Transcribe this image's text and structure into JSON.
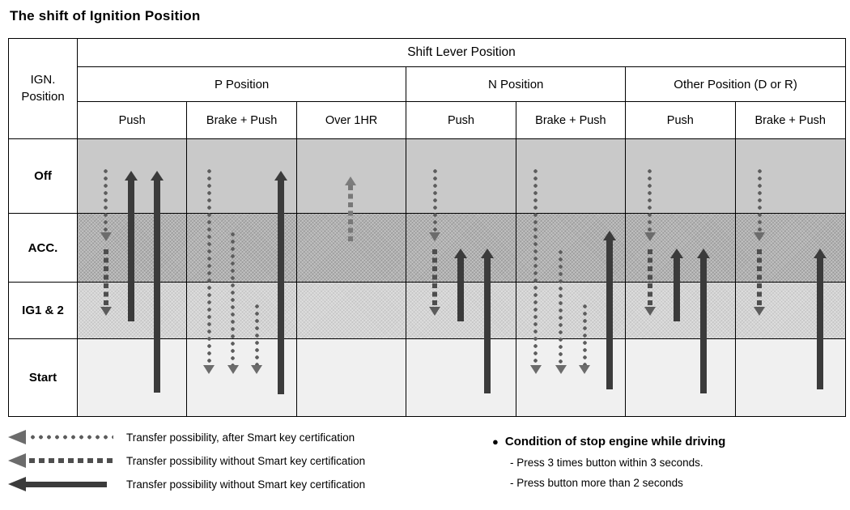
{
  "title": "The shift of Ignition Position",
  "table": {
    "corner_header": "IGN.\nPosition",
    "shift_lever_header": "Shift Lever Position",
    "group_headers": [
      "P Position",
      "N Position",
      "Other Position (D or R)"
    ],
    "column_headers": [
      "Push",
      "Brake + Push",
      "Over 1HR",
      "Push",
      "Brake + Push",
      "Push",
      "Brake + Push"
    ],
    "row_headers": [
      "Off",
      "ACC.",
      "IG1 & 2",
      "Start"
    ]
  },
  "arrows": [
    {
      "col": 0,
      "x": 26,
      "type": "dotted-down",
      "from": "Off",
      "to": "ACC.",
      "u1": 0.38,
      "u2": 1.4
    },
    {
      "col": 0,
      "x": 26,
      "type": "dashed-down",
      "from": "ACC.",
      "to": "IG1 & 2",
      "u1": 1.52,
      "u2": 2.58
    },
    {
      "col": 0,
      "x": 49,
      "type": "solid-up",
      "from": "IG1 & 2",
      "to": "Off",
      "u1": 0.42,
      "u2": 2.68
    },
    {
      "col": 0,
      "x": 73,
      "type": "solid-up",
      "from": "Start",
      "to": "Off",
      "u1": 0.42,
      "u2": 3.7
    },
    {
      "col": 1,
      "x": 20,
      "type": "dotted-down",
      "from": "Off",
      "to": "Start",
      "u1": 0.38,
      "u2": 3.45
    },
    {
      "col": 1,
      "x": 42,
      "type": "dotted-down",
      "from": "ACC.",
      "to": "Start",
      "u1": 1.25,
      "u2": 3.45
    },
    {
      "col": 1,
      "x": 64,
      "type": "dotted-down",
      "from": "IG1 & 2",
      "to": "Start",
      "u1": 2.35,
      "u2": 3.45
    },
    {
      "col": 1,
      "x": 86,
      "type": "solid-up",
      "from": "Start",
      "to": "Off",
      "u1": 0.42,
      "u2": 3.72
    },
    {
      "col": 2,
      "x": 49,
      "type": "dashed-up",
      "from": "ACC.",
      "to": "Off",
      "u1": 0.5,
      "u2": 1.45
    },
    {
      "col": 3,
      "x": 26,
      "type": "dotted-down",
      "from": "Off",
      "to": "ACC.",
      "u1": 0.38,
      "u2": 1.4
    },
    {
      "col": 3,
      "x": 26,
      "type": "dashed-down",
      "from": "ACC.",
      "to": "IG1 & 2",
      "u1": 1.52,
      "u2": 2.58
    },
    {
      "col": 3,
      "x": 50,
      "type": "solid-up",
      "from": "IG1 & 2",
      "to": "ACC.",
      "u1": 1.5,
      "u2": 2.68
    },
    {
      "col": 3,
      "x": 74,
      "type": "solid-up",
      "from": "Start",
      "to": "ACC.",
      "u1": 1.5,
      "u2": 3.7
    },
    {
      "col": 4,
      "x": 18,
      "type": "dotted-down",
      "from": "Off",
      "to": "Start",
      "u1": 0.38,
      "u2": 3.45
    },
    {
      "col": 4,
      "x": 41,
      "type": "dotted-down",
      "from": "ACC.",
      "to": "Start",
      "u1": 1.5,
      "u2": 3.45
    },
    {
      "col": 4,
      "x": 63,
      "type": "dotted-down",
      "from": "IG1 & 2",
      "to": "Start",
      "u1": 2.35,
      "u2": 3.45
    },
    {
      "col": 4,
      "x": 86,
      "type": "solid-up",
      "from": "Start",
      "to": "ACC.",
      "u1": 1.25,
      "u2": 3.65
    },
    {
      "col": 5,
      "x": 22,
      "type": "dotted-down",
      "from": "Off",
      "to": "ACC.",
      "u1": 0.38,
      "u2": 1.4
    },
    {
      "col": 5,
      "x": 22,
      "type": "dashed-down",
      "from": "ACC.",
      "to": "IG1 & 2",
      "u1": 1.52,
      "u2": 2.58
    },
    {
      "col": 5,
      "x": 47,
      "type": "solid-up",
      "from": "IG1 & 2",
      "to": "ACC.",
      "u1": 1.5,
      "u2": 2.68
    },
    {
      "col": 5,
      "x": 71,
      "type": "solid-up",
      "from": "Start",
      "to": "ACC.",
      "u1": 1.5,
      "u2": 3.7
    },
    {
      "col": 6,
      "x": 22,
      "type": "dotted-down",
      "from": "Off",
      "to": "ACC.",
      "u1": 0.38,
      "u2": 1.4
    },
    {
      "col": 6,
      "x": 22,
      "type": "dashed-down",
      "from": "ACC.",
      "to": "IG1 & 2",
      "u1": 1.52,
      "u2": 2.58
    },
    {
      "col": 6,
      "x": 77,
      "type": "solid-up",
      "from": "Start",
      "to": "ACC.",
      "u1": 1.5,
      "u2": 3.65
    }
  ],
  "legend": [
    {
      "style": "dotted",
      "label": "Transfer possibility, after Smart key certification"
    },
    {
      "style": "dashed",
      "label": "Transfer possibility without Smart key certification"
    },
    {
      "style": "solid",
      "label": "Transfer possibility without Smart key certification"
    }
  ],
  "notes": {
    "bullet": "●",
    "heading": "Condition of stop engine while driving",
    "items": [
      "- Press 3 times button within 3 seconds.",
      "- Press button more than 2 seconds"
    ]
  },
  "colors": {
    "arrow_dark": "#3b3b3b",
    "arrow_gray": "#5d5d5d",
    "arrow_light_gray": "#787878",
    "row_off_bg": "#c9c9c9",
    "row_acc_bg": "#b2b2b2",
    "row_ig_bg": "#d4d4d4",
    "row_start_bg": "#f0f0f0"
  }
}
